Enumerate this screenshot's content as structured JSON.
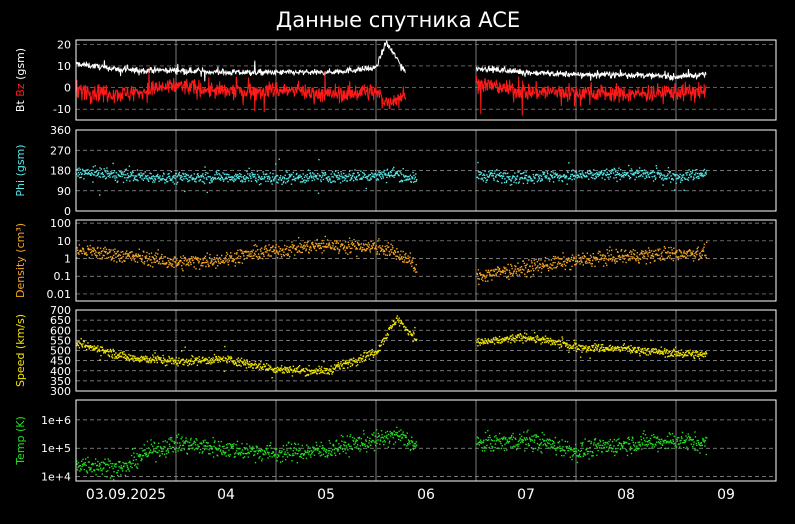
{
  "title": "Данные спутника ACE",
  "colors": {
    "background": "#000000",
    "frame": "#ffffff",
    "grid": "#9a9a9a",
    "bt": "#ffffff",
    "bz": "#ff1a1a",
    "phi": "#55e6e6",
    "density": "#f5a623",
    "speed": "#f2e600",
    "temp": "#22e022"
  },
  "x_axis": {
    "day_labels": [
      "03.09.2025",
      "04",
      "05",
      "06",
      "07",
      "08",
      "09"
    ]
  },
  "chart_data": [
    {
      "type": "line",
      "ylabel_parts": [
        "Bt",
        "Bz",
        "(gsm)"
      ],
      "ylim": [
        -15,
        22
      ],
      "yticks": [
        "20",
        "10",
        "0",
        "-10"
      ],
      "grid": true,
      "x_unit": "days since 2025-09-03 00:00",
      "series": [
        {
          "name": "Bt",
          "x": [
            0.0,
            0.5,
            1.0,
            1.5,
            2.0,
            2.5,
            3.0,
            3.1,
            3.3,
            3.5,
            4.0,
            4.5,
            5.0,
            5.5,
            6.0,
            6.3
          ],
          "values": [
            11,
            8,
            8,
            7,
            7,
            7,
            9,
            21,
            7,
            null,
            9,
            7,
            6,
            6,
            5,
            6
          ]
        },
        {
          "name": "Bz",
          "x": [
            0.0,
            0.5,
            1.0,
            1.5,
            2.0,
            2.5,
            3.0,
            3.1,
            3.3,
            3.5,
            4.0,
            4.5,
            5.0,
            5.5,
            6.0,
            6.3
          ],
          "values": [
            -1,
            -3,
            1,
            -2,
            -1,
            -3,
            -2,
            -7,
            -3,
            null,
            2,
            -2,
            -2,
            -3,
            -2,
            -2
          ]
        }
      ]
    },
    {
      "type": "scatter",
      "ylabel": "Phi (gsm)",
      "ylim": [
        0,
        360
      ],
      "yticks": [
        "360",
        "270",
        "180",
        "90",
        "0"
      ],
      "grid": true,
      "series": [
        {
          "name": "Phi",
          "x": [
            0.0,
            0.5,
            1.0,
            1.5,
            2.0,
            2.5,
            3.0,
            3.2,
            3.4,
            3.5,
            4.0,
            4.5,
            5.0,
            5.5,
            6.0,
            6.3
          ],
          "values": [
            175,
            160,
            150,
            155,
            150,
            155,
            160,
            170,
            140,
            null,
            160,
            155,
            160,
            170,
            155,
            170
          ]
        }
      ]
    },
    {
      "type": "scatter",
      "ylabel": "Density (cm³)",
      "yscale": "log",
      "ylim": [
        0.004,
        150
      ],
      "yticks": [
        "100",
        "10",
        "1",
        "0.1",
        "0.01"
      ],
      "grid": true,
      "series": [
        {
          "name": "Density",
          "x": [
            0.0,
            0.5,
            1.0,
            1.5,
            2.0,
            2.5,
            3.0,
            3.2,
            3.4,
            3.5,
            4.0,
            4.5,
            5.0,
            5.5,
            6.0,
            6.3
          ],
          "values": [
            3,
            1.5,
            0.6,
            1,
            3,
            6,
            5,
            2,
            0.15,
            null,
            0.1,
            0.3,
            0.8,
            1.5,
            2,
            2.5
          ]
        }
      ]
    },
    {
      "type": "scatter",
      "ylabel": "Speed (km/s)",
      "ylim": [
        300,
        700
      ],
      "yticks": [
        "700",
        "650",
        "600",
        "550",
        "500",
        "450",
        "400",
        "350",
        "300"
      ],
      "grid": true,
      "series": [
        {
          "name": "Speed",
          "x": [
            0.0,
            0.5,
            1.0,
            1.5,
            2.0,
            2.5,
            3.0,
            3.2,
            3.4,
            3.5,
            4.0,
            4.5,
            5.0,
            5.5,
            6.0,
            6.3
          ],
          "values": [
            540,
            470,
            450,
            460,
            410,
            400,
            500,
            660,
            560,
            null,
            540,
            570,
            520,
            510,
            490,
            480
          ]
        }
      ]
    },
    {
      "type": "scatter",
      "ylabel": "Temp (K)",
      "yscale": "log",
      "ylim": [
        7000,
        5000000
      ],
      "yticks": [
        "1e+6",
        "1e+5",
        "1e+4"
      ],
      "grid": true,
      "series": [
        {
          "name": "Temp",
          "x": [
            0.0,
            0.5,
            1.0,
            1.5,
            2.0,
            2.5,
            3.0,
            3.2,
            3.4,
            3.5,
            4.0,
            4.5,
            5.0,
            5.5,
            6.0,
            6.3
          ],
          "values": [
            30000,
            20000,
            150000,
            100000,
            70000,
            90000,
            200000,
            300000,
            120000,
            null,
            150000,
            200000,
            80000,
            150000,
            200000,
            150000
          ]
        }
      ]
    }
  ]
}
